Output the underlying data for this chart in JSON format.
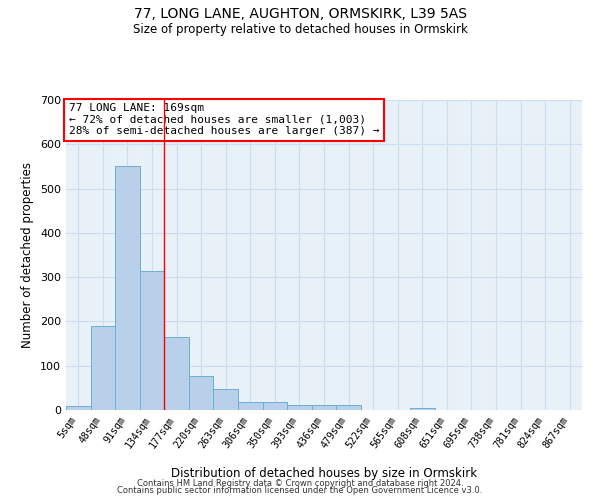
{
  "title": "77, LONG LANE, AUGHTON, ORMSKIRK, L39 5AS",
  "subtitle": "Size of property relative to detached houses in Ormskirk",
  "xlabel": "Distribution of detached houses by size in Ormskirk",
  "ylabel": "Number of detached properties",
  "bar_color": "#b8d0ea",
  "bar_edge_color": "#6aaed6",
  "grid_color": "#ccddf0",
  "bg_color": "#e8f0f8",
  "categories": [
    "5sqm",
    "48sqm",
    "91sqm",
    "134sqm",
    "177sqm",
    "220sqm",
    "263sqm",
    "306sqm",
    "350sqm",
    "393sqm",
    "436sqm",
    "479sqm",
    "522sqm",
    "565sqm",
    "608sqm",
    "651sqm",
    "695sqm",
    "738sqm",
    "781sqm",
    "824sqm",
    "867sqm"
  ],
  "values": [
    8,
    190,
    550,
    315,
    165,
    77,
    47,
    19,
    19,
    12,
    12,
    12,
    0,
    0,
    5,
    0,
    0,
    0,
    0,
    0,
    0
  ],
  "ylim": [
    0,
    700
  ],
  "yticks": [
    0,
    100,
    200,
    300,
    400,
    500,
    600,
    700
  ],
  "red_line_x": 3.5,
  "annotation_text": "77 LONG LANE: 169sqm\n← 72% of detached houses are smaller (1,003)\n28% of semi-detached houses are larger (387) →",
  "footnote1": "Contains HM Land Registry data © Crown copyright and database right 2024.",
  "footnote2": "Contains public sector information licensed under the Open Government Licence v3.0."
}
